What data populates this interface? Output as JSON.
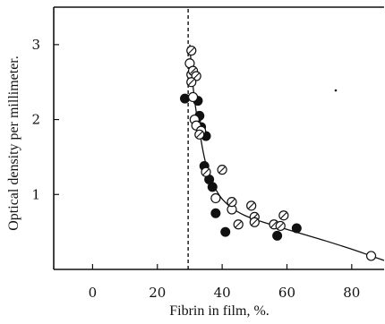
{
  "chart_data": {
    "type": "scatter",
    "title": "",
    "xlabel": "Fibrin in film, %.",
    "ylabel": "Optical density per millimeter.",
    "xlim": [
      -12,
      90
    ],
    "ylim": [
      0,
      3.5
    ],
    "x_ticks": [
      0,
      20,
      40,
      60,
      80
    ],
    "x_tick_labels": [
      "0",
      "20",
      "40",
      "60",
      "80"
    ],
    "y_ticks": [
      1,
      2,
      3
    ],
    "y_tick_labels": [
      "1",
      "2",
      "3"
    ],
    "grid": false,
    "vertical_reference_line": {
      "x": 29.5,
      "style": "dashed"
    },
    "series": [
      {
        "marker": "filled-circle",
        "x": [
          28.5,
          32.5,
          32.0,
          33.0,
          33.5,
          35.0,
          34.5,
          36.0,
          37.0,
          38.0,
          41.0,
          57.0,
          63.0
        ],
        "y": [
          2.28,
          2.25,
          2.0,
          2.05,
          1.9,
          1.78,
          1.38,
          1.2,
          1.1,
          0.75,
          0.5,
          0.45,
          0.55
        ]
      },
      {
        "marker": "open-circle",
        "x": [
          30.0,
          30.5,
          31.0,
          31.5,
          32.0,
          33.5,
          38.0,
          43.0,
          86.0
        ],
        "y": [
          2.75,
          2.6,
          2.3,
          2.0,
          1.92,
          1.85,
          0.95,
          0.8,
          0.18
        ]
      },
      {
        "marker": "hatched-circle",
        "x": [
          30.5,
          31.0,
          32.0,
          30.5,
          33.0,
          35.0,
          40.0,
          43.0,
          45.0,
          49.0,
          50.0,
          50.0,
          56.0,
          58.0,
          59.0
        ],
        "y": [
          2.92,
          2.65,
          2.58,
          2.5,
          1.8,
          1.3,
          1.33,
          0.9,
          0.6,
          0.85,
          0.7,
          0.63,
          0.6,
          0.58,
          0.72
        ]
      }
    ],
    "fit_curve": {
      "x": [
        30.0,
        30.5,
        31.0,
        32.0,
        33.0,
        34.0,
        35.0,
        36.0,
        38.0,
        40.0,
        43.0,
        47.0,
        52.0,
        58.0,
        65.0,
        72.0,
        80.0,
        86.0,
        90.0
      ],
      "y": [
        3.0,
        2.7,
        2.45,
        2.1,
        1.85,
        1.6,
        1.4,
        1.25,
        1.07,
        0.94,
        0.82,
        0.72,
        0.64,
        0.56,
        0.47,
        0.38,
        0.27,
        0.18,
        0.12
      ]
    }
  }
}
